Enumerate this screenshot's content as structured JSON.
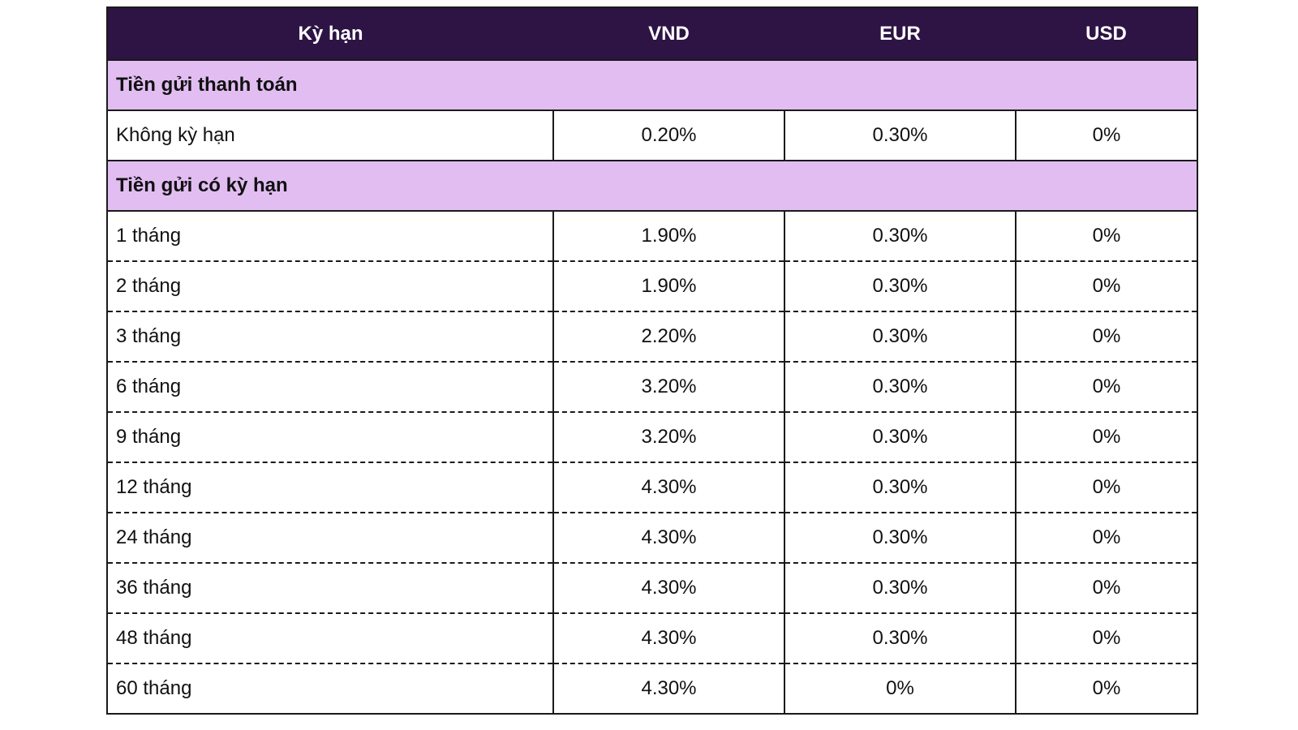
{
  "header": {
    "term": "Kỳ hạn",
    "vnd": "VND",
    "eur": "EUR",
    "usd": "USD"
  },
  "payment_deposit": {
    "title": "Tiền gửi thanh toán",
    "rows": [
      {
        "term": "Không kỳ hạn",
        "vnd": "0.20%",
        "eur": "0.30%",
        "usd": "0%"
      }
    ]
  },
  "term_deposit": {
    "title": "Tiền gửi có kỳ hạn",
    "rows": [
      {
        "term": "1 tháng",
        "vnd": "1.90%",
        "eur": "0.30%",
        "usd": "0%"
      },
      {
        "term": "2 tháng",
        "vnd": "1.90%",
        "eur": "0.30%",
        "usd": "0%"
      },
      {
        "term": "3 tháng",
        "vnd": "2.20%",
        "eur": "0.30%",
        "usd": "0%"
      },
      {
        "term": "6 tháng",
        "vnd": "3.20%",
        "eur": "0.30%",
        "usd": "0%"
      },
      {
        "term": "9 tháng",
        "vnd": "3.20%",
        "eur": "0.30%",
        "usd": "0%"
      },
      {
        "term": "12 tháng",
        "vnd": "4.30%",
        "eur": "0.30%",
        "usd": "0%"
      },
      {
        "term": "24 tháng",
        "vnd": "4.30%",
        "eur": "0.30%",
        "usd": "0%"
      },
      {
        "term": "36 tháng",
        "vnd": "4.30%",
        "eur": "0.30%",
        "usd": "0%"
      },
      {
        "term": "48 tháng",
        "vnd": "4.30%",
        "eur": "0.30%",
        "usd": "0%"
      },
      {
        "term": "60 tháng",
        "vnd": "4.30%",
        "eur": "0%",
        "usd": "0%"
      }
    ]
  },
  "colors": {
    "header_bg": "#2e1445",
    "header_text": "#ffffff",
    "section_bg": "#e2bdf2",
    "border": "#1a1a1a"
  }
}
